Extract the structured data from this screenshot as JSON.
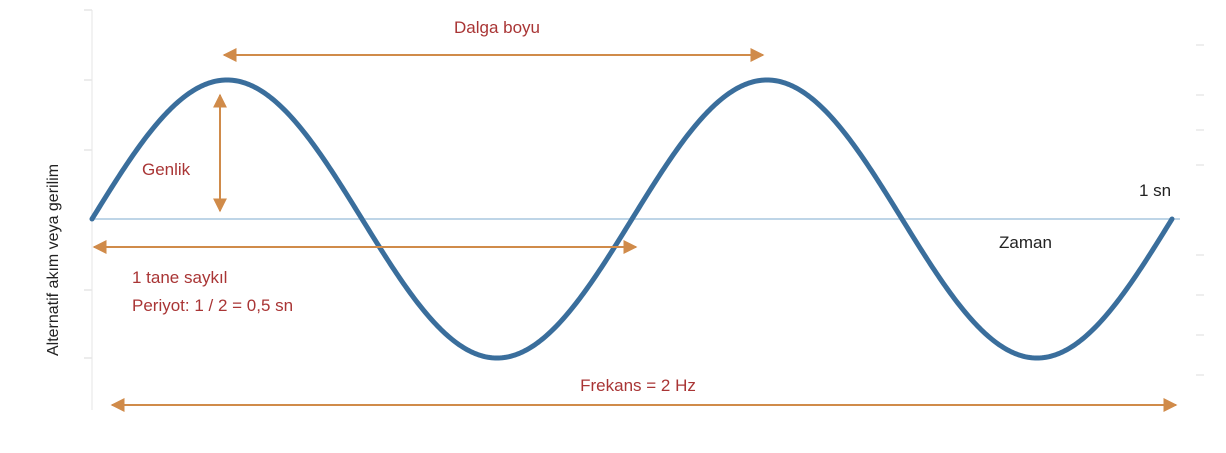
{
  "diagram": {
    "y_axis_label": "Alternatif akım veya gerilim",
    "x_axis_label": "Zaman",
    "end_time_label": "1 sn",
    "wavelength_label": "Dalga boyu",
    "amplitude_label": "Genlik",
    "cycle_label": "1 tane saykıl",
    "period_label": "Periyot: 1 / 2 = 0,5 sn",
    "frequency_label": "Frekans = 2 Hz"
  },
  "wave": {
    "frequency_hz": 2,
    "duration_s": 1,
    "period_s": 0.5,
    "cycles": 2
  },
  "colors": {
    "wave": "#3a6e9c",
    "arrow": "#d08b4a",
    "annotation": "#a93535",
    "axis": "#a9c7df",
    "text": "#222222"
  }
}
